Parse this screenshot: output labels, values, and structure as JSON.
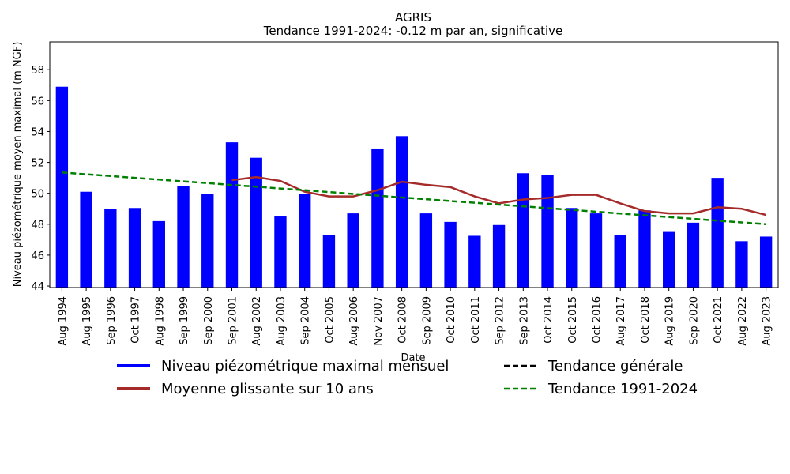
{
  "chart_data": {
    "type": "bar",
    "title": "AGRIS",
    "subtitle": "Tendance 1991-2024: -0.12 m par an, significative",
    "x_label": "Date",
    "y_label": "Niveau piézométrique moyen maximal (m NGF)",
    "categories": [
      "Aug 1994",
      "Aug 1995",
      "Sep 1996",
      "Oct 1997",
      "Aug 1998",
      "Sep 1999",
      "Sep 2000",
      "Sep 2001",
      "Aug 2002",
      "Aug 2003",
      "Sep 2004",
      "Oct 2005",
      "Aug 2006",
      "Nov 2007",
      "Oct 2008",
      "Sep 2009",
      "Oct 2010",
      "Oct 2011",
      "Sep 2012",
      "Sep 2013",
      "Oct 2014",
      "Oct 2015",
      "Oct 2016",
      "Aug 2017",
      "Oct 2018",
      "Aug 2019",
      "Sep 2020",
      "Oct 2021",
      "Aug 2022",
      "Aug 2023"
    ],
    "series": [
      {
        "name": "Niveau piézométrique maximal mensuel",
        "type": "bar",
        "color": "#0000ff",
        "values": [
          56.9,
          50.1,
          49.0,
          49.05,
          48.2,
          50.45,
          49.95,
          53.3,
          52.3,
          48.5,
          49.95,
          47.3,
          48.7,
          52.9,
          53.7,
          48.7,
          48.15,
          47.25,
          47.95,
          51.3,
          51.2,
          49.05,
          48.7,
          47.3,
          48.9,
          47.5,
          48.1,
          51.0,
          46.9,
          47.2
        ]
      },
      {
        "name": "Moyenne glissante sur 10 ans",
        "type": "line",
        "color": "#a52a2a",
        "dashed": false,
        "values": [
          null,
          null,
          null,
          null,
          null,
          null,
          null,
          50.85,
          51.05,
          50.8,
          50.1,
          49.8,
          49.8,
          50.2,
          50.75,
          50.55,
          50.4,
          49.8,
          49.35,
          49.6,
          49.7,
          49.9,
          49.9,
          49.35,
          48.85,
          48.7,
          48.7,
          49.1,
          49.0,
          48.6
        ]
      },
      {
        "name": "Tendance générale",
        "type": "line",
        "color": "#000000",
        "dashed": true,
        "values": [
          null,
          null,
          null,
          null,
          null,
          null,
          null,
          null,
          null,
          null,
          null,
          null,
          null,
          null,
          null,
          null,
          null,
          null,
          null,
          null,
          null,
          null,
          null,
          null,
          null,
          null,
          null,
          null,
          null,
          null
        ]
      },
      {
        "name": "Tendance 1991-2024",
        "type": "line",
        "color": "#008000",
        "dashed": true,
        "values": [
          51.35,
          51.23,
          51.12,
          51.0,
          50.89,
          50.77,
          50.66,
          50.54,
          50.43,
          50.31,
          50.2,
          50.08,
          49.96,
          49.85,
          49.73,
          49.62,
          49.5,
          49.39,
          49.27,
          49.16,
          49.04,
          48.93,
          48.81,
          48.69,
          48.58,
          48.46,
          48.35,
          48.23,
          48.12,
          48.0
        ]
      }
    ],
    "ylim": [
      43.9,
      59.8
    ],
    "yticks": [
      44,
      46,
      48,
      50,
      52,
      54,
      56,
      58
    ]
  }
}
